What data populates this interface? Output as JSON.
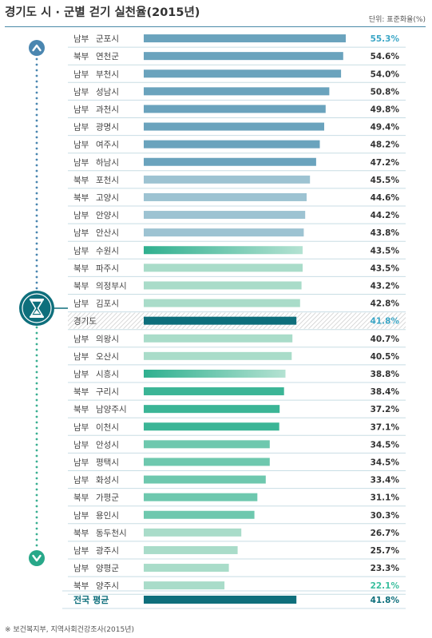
{
  "title": "경기도 시 · 군별 걷기 실천율(2015년)",
  "unit": "단위: 표준화율(%)",
  "source": "※ 보건복지부, 지역사회건강조사(2015년)",
  "colors": {
    "steel": "#6aa3bd",
    "steel_light": "#9dc3d2",
    "teal_bright": "#3bb596",
    "teal_mid": "#6ec8ae",
    "teal_light": "#a9dcc9",
    "highlight_text": "#3aa6c6",
    "highlight_low": "#3bbf9e",
    "dark": "#0e6f7c",
    "row_sep": "#c8dde4",
    "dots_top": "#4a86b0",
    "dots_bottom": "#3aaf91",
    "hatch": "#d6d6d6"
  },
  "icons": {
    "up": "chevron-up-icon",
    "down": "chevron-down-icon",
    "center": "hourglass-icon"
  },
  "chart_data": {
    "type": "bar",
    "orientation": "horizontal",
    "xlim": [
      0,
      55.3
    ],
    "rows": [
      {
        "region": "남부",
        "name": "군포시",
        "value": 55.3,
        "label": "55.3%",
        "color": "steel",
        "emph": "high"
      },
      {
        "region": "북부",
        "name": "연천군",
        "value": 54.6,
        "label": "54.6%",
        "color": "steel"
      },
      {
        "region": "남부",
        "name": "부천시",
        "value": 54.0,
        "label": "54.0%",
        "color": "steel"
      },
      {
        "region": "남부",
        "name": "성남시",
        "value": 50.8,
        "label": "50.8%",
        "color": "steel"
      },
      {
        "region": "남부",
        "name": "과천시",
        "value": 49.8,
        "label": "49.8%",
        "color": "steel"
      },
      {
        "region": "남부",
        "name": "광명시",
        "value": 49.4,
        "label": "49.4%",
        "color": "steel"
      },
      {
        "region": "남부",
        "name": "여주시",
        "value": 48.2,
        "label": "48.2%",
        "color": "steel"
      },
      {
        "region": "남부",
        "name": "하남시",
        "value": 47.2,
        "label": "47.2%",
        "color": "steel"
      },
      {
        "region": "북부",
        "name": "포천시",
        "value": 45.5,
        "label": "45.5%",
        "color": "steel_light"
      },
      {
        "region": "북부",
        "name": "고양시",
        "value": 44.6,
        "label": "44.6%",
        "color": "steel_light"
      },
      {
        "region": "남부",
        "name": "안양시",
        "value": 44.2,
        "label": "44.2%",
        "color": "steel_light"
      },
      {
        "region": "남부",
        "name": "안산시",
        "value": 43.8,
        "label": "43.8%",
        "color": "steel_light"
      },
      {
        "region": "남부",
        "name": "수원시",
        "value": 43.5,
        "label": "43.5%",
        "color": "teal_grad"
      },
      {
        "region": "북부",
        "name": "파주시",
        "value": 43.5,
        "label": "43.5%",
        "color": "teal_light"
      },
      {
        "region": "북부",
        "name": "의정부시",
        "value": 43.2,
        "label": "43.2%",
        "color": "teal_light"
      },
      {
        "region": "남부",
        "name": "김포시",
        "value": 42.8,
        "label": "42.8%",
        "color": "teal_light"
      },
      {
        "region": "",
        "name": "경기도",
        "value": 41.8,
        "label": "41.8%",
        "color": "dark",
        "emph": "province"
      },
      {
        "region": "남부",
        "name": "의왕시",
        "value": 40.7,
        "label": "40.7%",
        "color": "teal_light"
      },
      {
        "region": "남부",
        "name": "오산시",
        "value": 40.5,
        "label": "40.5%",
        "color": "teal_light"
      },
      {
        "region": "남부",
        "name": "시흥시",
        "value": 38.8,
        "label": "38.8%",
        "color": "teal_grad"
      },
      {
        "region": "북부",
        "name": "구리시",
        "value": 38.4,
        "label": "38.4%",
        "color": "teal_bright"
      },
      {
        "region": "북부",
        "name": "남양주시",
        "value": 37.2,
        "label": "37.2%",
        "color": "teal_bright"
      },
      {
        "region": "남부",
        "name": "이천시",
        "value": 37.1,
        "label": "37.1%",
        "color": "teal_bright"
      },
      {
        "region": "남부",
        "name": "안성시",
        "value": 34.5,
        "label": "34.5%",
        "color": "teal_mid"
      },
      {
        "region": "남부",
        "name": "평택시",
        "value": 34.5,
        "label": "34.5%",
        "color": "teal_mid"
      },
      {
        "region": "남부",
        "name": "화성시",
        "value": 33.4,
        "label": "33.4%",
        "color": "teal_mid"
      },
      {
        "region": "북부",
        "name": "가평군",
        "value": 31.1,
        "label": "31.1%",
        "color": "teal_mid"
      },
      {
        "region": "남부",
        "name": "용인시",
        "value": 30.3,
        "label": "30.3%",
        "color": "teal_mid"
      },
      {
        "region": "북부",
        "name": "동두천시",
        "value": 26.7,
        "label": "26.7%",
        "color": "teal_light"
      },
      {
        "region": "남부",
        "name": "광주시",
        "value": 25.7,
        "label": "25.7%",
        "color": "teal_light"
      },
      {
        "region": "남부",
        "name": "양평군",
        "value": 23.3,
        "label": "23.3%",
        "color": "teal_light"
      },
      {
        "region": "북부",
        "name": "양주시",
        "value": 22.1,
        "label": "22.1%",
        "color": "teal_light",
        "emph": "low"
      }
    ],
    "national": {
      "name": "전국 평균",
      "value": 41.8,
      "label": "41.8%",
      "color": "dark"
    }
  }
}
